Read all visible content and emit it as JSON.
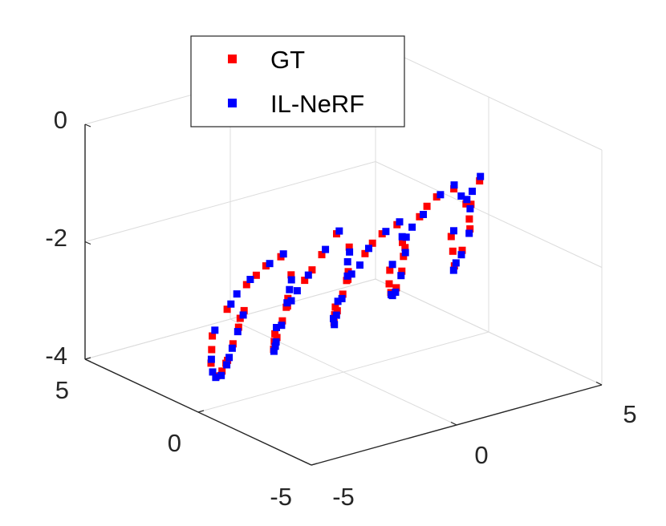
{
  "chart_data": {
    "type": "scatter",
    "projection": "3d",
    "grid": true,
    "legend_placement": "top-left",
    "title": "",
    "xlabel": "",
    "ylabel": "",
    "zlabel": "",
    "xlim": [
      -5,
      5
    ],
    "ylim": [
      -5,
      5
    ],
    "zlim": [
      -4,
      0
    ],
    "x_ticks": [
      "-5",
      "0",
      "5"
    ],
    "y_ticks": [
      "-5",
      "0",
      "5"
    ],
    "z_ticks": [
      "-4",
      "-2",
      "0"
    ],
    "colors": {
      "GT": "#ff0000",
      "IL-NeRF": "#0000ff"
    },
    "series": [
      {
        "name": "GT",
        "points": [
          [
            -4.2,
            -1.0,
            -2.2
          ],
          [
            -4.0,
            -0.5,
            -2.6
          ],
          [
            -3.8,
            0.0,
            -3.0
          ],
          [
            -3.6,
            0.5,
            -3.4
          ],
          [
            -3.4,
            1.0,
            -3.7
          ],
          [
            -3.2,
            1.5,
            -3.9
          ],
          [
            -3.0,
            2.0,
            -3.8
          ],
          [
            -2.8,
            2.2,
            -3.4
          ],
          [
            -2.6,
            1.8,
            -2.9
          ],
          [
            -2.4,
            1.2,
            -2.4
          ],
          [
            -2.2,
            0.6,
            -2.0
          ],
          [
            -2.0,
            0.2,
            -1.8
          ],
          [
            -1.8,
            0.0,
            -2.1
          ],
          [
            -1.6,
            0.4,
            -2.6
          ],
          [
            -1.4,
            0.9,
            -3.1
          ],
          [
            -1.2,
            1.4,
            -3.5
          ],
          [
            -1.0,
            1.8,
            -3.8
          ],
          [
            -0.8,
            2.0,
            -3.6
          ],
          [
            -0.6,
            1.7,
            -3.1
          ],
          [
            -0.4,
            1.2,
            -2.6
          ],
          [
            -0.2,
            0.7,
            -2.1
          ],
          [
            0.0,
            0.3,
            -1.7
          ],
          [
            0.2,
            0.0,
            -1.9
          ],
          [
            0.4,
            0.3,
            -2.4
          ],
          [
            0.6,
            0.8,
            -2.9
          ],
          [
            0.8,
            1.3,
            -3.3
          ],
          [
            1.0,
            1.7,
            -3.6
          ],
          [
            1.2,
            1.9,
            -3.4
          ],
          [
            1.4,
            1.6,
            -2.9
          ],
          [
            1.6,
            1.1,
            -2.4
          ],
          [
            1.8,
            0.6,
            -2.0
          ],
          [
            2.0,
            0.2,
            -1.8
          ],
          [
            2.2,
            0.1,
            -2.2
          ],
          [
            2.4,
            0.5,
            -2.7
          ],
          [
            2.6,
            1.0,
            -3.1
          ],
          [
            2.8,
            1.5,
            -3.3
          ],
          [
            3.0,
            1.8,
            -3.0
          ],
          [
            3.2,
            1.5,
            -2.5
          ],
          [
            3.4,
            1.0,
            -2.0
          ],
          [
            3.6,
            0.5,
            -1.6
          ],
          [
            3.8,
            0.0,
            -1.4
          ],
          [
            4.0,
            -0.5,
            -1.6
          ],
          [
            4.2,
            -0.2,
            -2.1
          ],
          [
            4.4,
            0.4,
            -2.6
          ],
          [
            4.6,
            1.0,
            -3.0
          ],
          [
            4.8,
            1.4,
            -2.6
          ],
          [
            5.0,
            1.0,
            -2.0
          ],
          [
            5.0,
            0.4,
            -1.5
          ],
          [
            -4.1,
            -0.7,
            -2.4
          ],
          [
            -3.5,
            0.7,
            -3.5
          ],
          [
            -2.9,
            2.1,
            -3.6
          ],
          [
            -2.3,
            0.9,
            -2.2
          ],
          [
            -1.5,
            0.6,
            -2.8
          ],
          [
            -0.9,
            1.9,
            -3.7
          ],
          [
            -0.3,
            1.0,
            -2.4
          ],
          [
            0.5,
            0.5,
            -2.6
          ],
          [
            1.1,
            1.8,
            -3.5
          ],
          [
            1.7,
            0.9,
            -2.2
          ],
          [
            2.3,
            0.3,
            -2.4
          ],
          [
            2.9,
            1.7,
            -3.2
          ],
          [
            3.5,
            0.8,
            -1.8
          ],
          [
            4.1,
            -0.3,
            -1.9
          ],
          [
            4.7,
            1.2,
            -2.8
          ]
        ]
      },
      {
        "name": "IL-NeRF",
        "points": [
          [
            -4.15,
            -0.9,
            -2.3
          ],
          [
            -3.95,
            -0.4,
            -2.7
          ],
          [
            -3.75,
            0.1,
            -3.1
          ],
          [
            -3.55,
            0.6,
            -3.5
          ],
          [
            -3.35,
            1.1,
            -3.8
          ],
          [
            -3.15,
            1.6,
            -3.95
          ],
          [
            -2.95,
            2.05,
            -3.75
          ],
          [
            -2.75,
            2.15,
            -3.3
          ],
          [
            -2.55,
            1.7,
            -2.8
          ],
          [
            -2.35,
            1.1,
            -2.3
          ],
          [
            -2.15,
            0.5,
            -1.95
          ],
          [
            -1.95,
            0.15,
            -1.75
          ],
          [
            -1.75,
            0.05,
            -2.2
          ],
          [
            -1.55,
            0.5,
            -2.7
          ],
          [
            -1.35,
            1.0,
            -3.2
          ],
          [
            -1.15,
            1.5,
            -3.6
          ],
          [
            -0.95,
            1.85,
            -3.85
          ],
          [
            -0.75,
            2.0,
            -3.5
          ],
          [
            -0.55,
            1.6,
            -3.0
          ],
          [
            -0.35,
            1.1,
            -2.5
          ],
          [
            -0.15,
            0.6,
            -2.0
          ],
          [
            0.05,
            0.25,
            -1.65
          ],
          [
            0.25,
            0.05,
            -2.0
          ],
          [
            0.45,
            0.4,
            -2.5
          ],
          [
            0.65,
            0.9,
            -3.0
          ],
          [
            0.85,
            1.4,
            -3.4
          ],
          [
            1.05,
            1.75,
            -3.65
          ],
          [
            1.25,
            1.85,
            -3.3
          ],
          [
            1.45,
            1.5,
            -2.8
          ],
          [
            1.65,
            1.0,
            -2.3
          ],
          [
            1.85,
            0.5,
            -1.95
          ],
          [
            2.05,
            0.15,
            -1.75
          ],
          [
            2.25,
            0.15,
            -2.3
          ],
          [
            2.45,
            0.6,
            -2.8
          ],
          [
            2.65,
            1.1,
            -3.2
          ],
          [
            2.85,
            1.55,
            -3.35
          ],
          [
            3.05,
            1.75,
            -2.9
          ],
          [
            3.25,
            1.4,
            -2.4
          ],
          [
            3.45,
            0.9,
            -1.95
          ],
          [
            3.65,
            0.4,
            -1.55
          ],
          [
            3.85,
            0.05,
            -1.35
          ],
          [
            4.05,
            -0.4,
            -1.7
          ],
          [
            4.25,
            -0.1,
            -2.2
          ],
          [
            4.45,
            0.5,
            -2.7
          ],
          [
            4.65,
            1.1,
            -3.1
          ],
          [
            4.85,
            1.35,
            -2.5
          ],
          [
            4.95,
            0.9,
            -1.9
          ],
          [
            4.95,
            0.3,
            -1.4
          ],
          [
            -3.7,
            0.3,
            -3.3
          ],
          [
            -3.1,
            1.8,
            -3.9
          ],
          [
            -2.5,
            1.5,
            -2.6
          ],
          [
            -1.7,
            0.2,
            -2.4
          ],
          [
            -1.1,
            1.6,
            -3.7
          ],
          [
            -0.5,
            1.4,
            -2.8
          ],
          [
            0.3,
            0.2,
            -2.2
          ],
          [
            0.9,
            1.6,
            -3.5
          ],
          [
            1.5,
            1.2,
            -2.6
          ],
          [
            2.1,
            0.1,
            -2.0
          ],
          [
            2.7,
            1.3,
            -3.3
          ],
          [
            3.3,
            1.2,
            -2.2
          ],
          [
            3.9,
            -0.2,
            -1.5
          ],
          [
            4.5,
            0.8,
            -2.9
          ],
          [
            4.9,
            0.6,
            -1.7
          ]
        ]
      }
    ]
  },
  "legend": {
    "items": [
      {
        "label": "GT",
        "color": "#ff0000"
      },
      {
        "label": "IL-NeRF",
        "color": "#0000ff"
      }
    ]
  }
}
